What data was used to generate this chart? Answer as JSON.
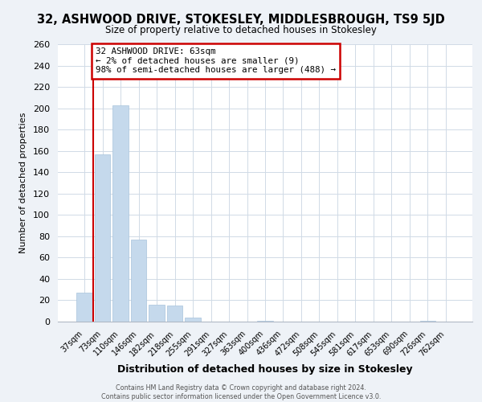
{
  "title": "32, ASHWOOD DRIVE, STOKESLEY, MIDDLESBROUGH, TS9 5JD",
  "subtitle": "Size of property relative to detached houses in Stokesley",
  "xlabel": "Distribution of detached houses by size in Stokesley",
  "ylabel": "Number of detached properties",
  "bar_labels": [
    "37sqm",
    "73sqm",
    "110sqm",
    "146sqm",
    "182sqm",
    "218sqm",
    "255sqm",
    "291sqm",
    "327sqm",
    "363sqm",
    "400sqm",
    "436sqm",
    "472sqm",
    "508sqm",
    "545sqm",
    "581sqm",
    "617sqm",
    "653sqm",
    "690sqm",
    "726sqm",
    "762sqm"
  ],
  "bar_values": [
    27,
    157,
    203,
    77,
    16,
    15,
    4,
    0,
    0,
    0,
    1,
    0,
    0,
    0,
    0,
    0,
    0,
    0,
    0,
    1,
    0
  ],
  "bar_color": "#c5d9ec",
  "bar_edge_color": "#a8c4dc",
  "annotation_title": "32 ASHWOOD DRIVE: 63sqm",
  "annotation_line2": "← 2% of detached houses are smaller (9)",
  "annotation_line3": "98% of semi-detached houses are larger (488) →",
  "vline_color": "#cc0000",
  "annotation_box_color": "#cc0000",
  "ylim": [
    0,
    260
  ],
  "yticks": [
    0,
    20,
    40,
    60,
    80,
    100,
    120,
    140,
    160,
    180,
    200,
    220,
    240,
    260
  ],
  "footer1": "Contains HM Land Registry data © Crown copyright and database right 2024.",
  "footer2": "Contains public sector information licensed under the Open Government Licence v3.0.",
  "background_color": "#eef2f7",
  "plot_bg_color": "#ffffff",
  "grid_color": "#d0dae6"
}
